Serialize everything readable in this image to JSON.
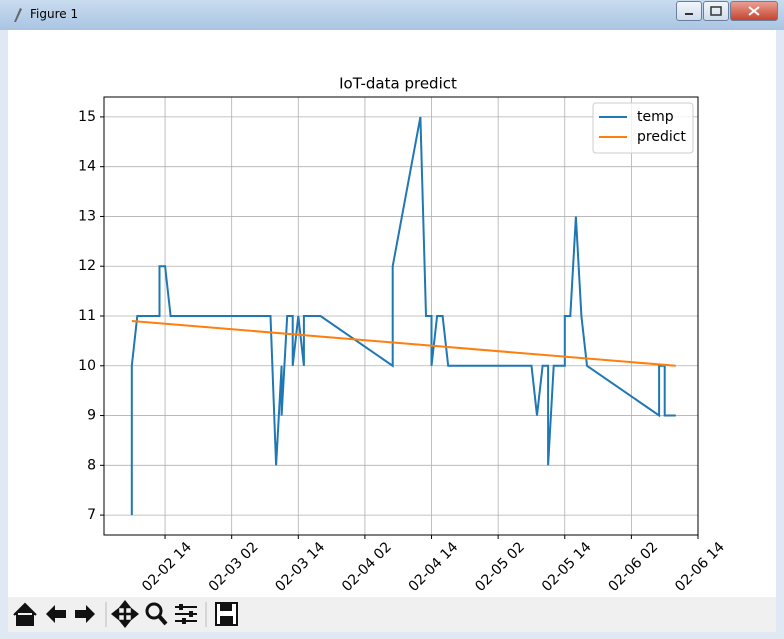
{
  "window": {
    "title": "Figure 1"
  },
  "chart_data": {
    "type": "line",
    "title": "IoT-data predict",
    "xlim": [
      "02-02 03",
      "02-06 14"
    ],
    "xticks": [
      "02-02 14",
      "02-03 02",
      "02-03 14",
      "02-04 02",
      "02-04 14",
      "02-05 02",
      "02-05 14",
      "02-06 02",
      "02-06 14"
    ],
    "ylim": [
      6.6,
      15.4
    ],
    "yticks": [
      7,
      8,
      9,
      10,
      11,
      12,
      13,
      14,
      15
    ],
    "grid": true,
    "legend": "upper right",
    "series": [
      {
        "name": "temp",
        "color": "#1f77b4",
        "x": [
          "02-02 08",
          "02-02 08",
          "02-02 08",
          "02-02 09",
          "02-02 13",
          "02-02 13",
          "02-02 14",
          "02-02 15",
          "02-03 09",
          "02-03 10",
          "02-03 11",
          "02-03 11",
          "02-03 12",
          "02-03 13",
          "02-03 13",
          "02-03 14",
          "02-03 14",
          "02-03 15",
          "02-03 15",
          "02-03 18",
          "02-04 07",
          "02-04 07",
          "02-04 12",
          "02-04 13",
          "02-04 14",
          "02-04 14",
          "02-04 15",
          "02-04 16",
          "02-04 17",
          "02-05 08",
          "02-05 09",
          "02-05 09",
          "02-05 10",
          "02-05 11",
          "02-05 11",
          "02-05 12",
          "02-05 14",
          "02-05 14",
          "02-05 15",
          "02-05 16",
          "02-05 17",
          "02-05 17",
          "02-05 18",
          "02-06 07",
          "02-06 07",
          "02-06 08",
          "02-06 08",
          "02-06 10"
        ],
        "values": [
          7,
          10,
          10,
          11,
          11,
          12,
          12,
          11,
          11,
          8,
          10,
          9,
          11,
          11,
          10,
          11,
          11,
          10,
          11,
          11,
          10,
          12,
          15,
          11,
          11,
          10,
          11,
          11,
          10,
          10,
          9,
          9,
          10,
          10,
          8,
          10,
          10,
          11,
          11,
          13,
          11,
          11,
          10,
          9,
          10,
          10,
          9,
          9
        ]
      },
      {
        "name": "predict",
        "color": "#ff7f0e",
        "x": [
          "02-02 08",
          "02-06 10"
        ],
        "values": [
          10.9,
          10.0
        ]
      }
    ]
  }
}
